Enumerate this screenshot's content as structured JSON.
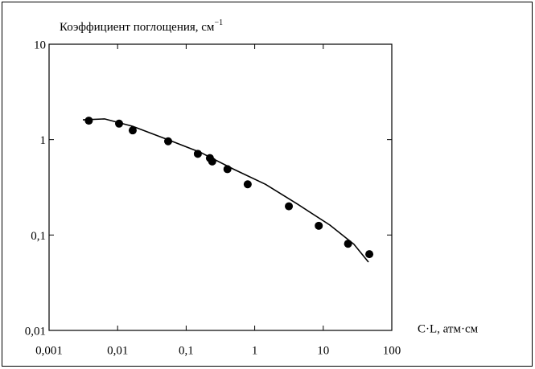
{
  "chart_data": {
    "type": "scatter",
    "ylabel": {
      "text": "Коэффициент поглощения, см",
      "superscript": "−1"
    },
    "xlabel": "C·L, атм·см",
    "xscale": "log",
    "yscale": "log",
    "xlim": [
      0.001,
      100
    ],
    "ylim": [
      0.01,
      10
    ],
    "xticks": [
      {
        "value": 0.001,
        "label": "0,001"
      },
      {
        "value": 0.01,
        "label": "0,01"
      },
      {
        "value": 0.1,
        "label": "0,1"
      },
      1,
      10,
      100
    ],
    "yticks": [
      {
        "value": 0.01,
        "label": "0,01"
      },
      {
        "value": 0.1,
        "label": "0,1"
      },
      1,
      10
    ],
    "color": "#000000",
    "points": {
      "x": [
        0.0038,
        0.0105,
        0.0166,
        0.0546,
        0.148,
        0.222,
        0.24,
        0.4,
        0.79,
        3.15,
        8.6,
        23,
        47
      ],
      "y": [
        1.58,
        1.47,
        1.25,
        0.96,
        0.71,
        0.64,
        0.59,
        0.49,
        0.34,
        0.2,
        0.125,
        0.081,
        0.063
      ]
    },
    "curve": {
      "x": [
        0.00311,
        0.00646,
        0.0166,
        0.0561,
        0.165,
        0.49,
        1.44,
        4.24,
        12.5,
        28,
        45.7
      ],
      "y": [
        1.61,
        1.65,
        1.38,
        0.99,
        0.73,
        0.49,
        0.34,
        0.21,
        0.127,
        0.08,
        0.052
      ]
    }
  }
}
